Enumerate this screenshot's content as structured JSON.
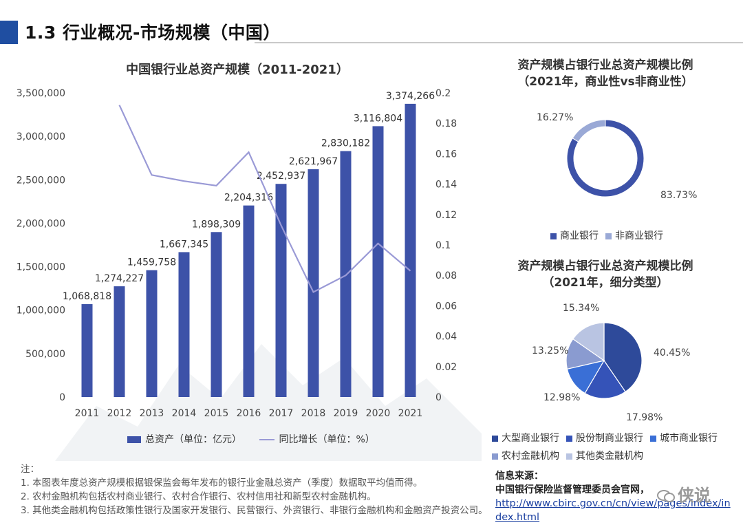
{
  "header": {
    "title": "1.3 行业概况-市场规模（中国）"
  },
  "chart_data": [
    {
      "type": "bar",
      "title": "中国银行业总资产规模（2011-2021）",
      "categories": [
        "2011",
        "2012",
        "2013",
        "2014",
        "2015",
        "2016",
        "2017",
        "2018",
        "2019",
        "2020",
        "2021"
      ],
      "series": [
        {
          "name": "总资产（单位：亿元）",
          "type": "bar",
          "axis": "left",
          "values": [
            1068818,
            1274227,
            1459758,
            1667345,
            1898309,
            2204316,
            2452937,
            2621967,
            2830182,
            3116804,
            3374266
          ],
          "labels": [
            "1,068,818",
            "1,274,227",
            "1,459,758",
            "1,667,345",
            "1,898,309",
            "2,204,316",
            "2,452,937",
            "2,621,967",
            "2,830,182",
            "3,116,804",
            "3,374,266"
          ]
        },
        {
          "name": "同比增长（单位：%）",
          "type": "line",
          "axis": "right",
          "values": [
            null,
            0.192,
            0.146,
            0.142,
            0.139,
            0.161,
            0.113,
            0.069,
            0.08,
            0.101,
            0.083
          ]
        }
      ],
      "yleft": {
        "range": [
          0,
          3500000
        ],
        "ticks": [
          "0",
          "500,000",
          "1,000,000",
          "1,500,000",
          "2,000,000",
          "2,500,000",
          "3,000,000",
          "3,500,000"
        ]
      },
      "yright": {
        "range": [
          0,
          0.2
        ],
        "ticks": [
          "0",
          "0.02",
          "0.04",
          "0.06",
          "0.08",
          "0.1",
          "0.12",
          "0.14",
          "0.16",
          "0.18",
          "0.2"
        ]
      },
      "legend": [
        "总资产（单位：亿元）",
        "同比增长（单位：%）"
      ]
    },
    {
      "type": "pie",
      "variant": "donut",
      "title": "资产规模占银行业总资产规模比例（2021年，商业性vs非商业性）",
      "labels": [
        "商业银行",
        "非商业银行"
      ],
      "values": [
        83.73,
        16.27
      ],
      "value_labels": [
        "83.73%",
        "16.27%"
      ],
      "colors": [
        "#3d52a8",
        "#9aa9d6"
      ]
    },
    {
      "type": "pie",
      "title": "资产规模占银行业总资产规模比例（2021年，细分类型）",
      "labels": [
        "大型商业银行",
        "股份制商业银行",
        "城市商业银行",
        "农村金融机构",
        "其他类金融机构"
      ],
      "values": [
        40.45,
        17.98,
        12.98,
        13.25,
        15.34
      ],
      "value_labels": [
        "40.45%",
        "17.98%",
        "12.98%",
        "13.25%",
        "15.34%"
      ],
      "colors": [
        "#2e4a9a",
        "#3553b8",
        "#3a6fd6",
        "#8a9bd0",
        "#b9c4e2"
      ]
    }
  ],
  "pie1": {
    "title_line1": "资产规模占银行业总资产规模比例",
    "title_line2": "（2021年，商业性vs非商业性）"
  },
  "pie2": {
    "title_line1": "资产规模占银行业总资产规模比例",
    "title_line2": "（2021年，细分类型）"
  },
  "notes": {
    "heading": "注：",
    "items": [
      "1.  本图表年度总资产规模根据银保监会每年发布的银行业金融总资产（季度）数据取平均值而得。",
      "2.  农村金融机构包括农村商业银行、农村合作银行、农村信用社和新型农村金融机构。",
      "3.  其他类金融机构包括政策性银行及国家开发银行、民营银行、外资银行、非银行金融机构和金融资产投资公司。"
    ]
  },
  "source": {
    "label": "信息来源：",
    "org": "中国银行保险监督管理委员会官网，",
    "url_line1": "http://www.cbirc.gov.cn/cn/view/pages/index/in",
    "url_line2": "dex.html"
  },
  "watermark": {
    "text": "侠说"
  }
}
